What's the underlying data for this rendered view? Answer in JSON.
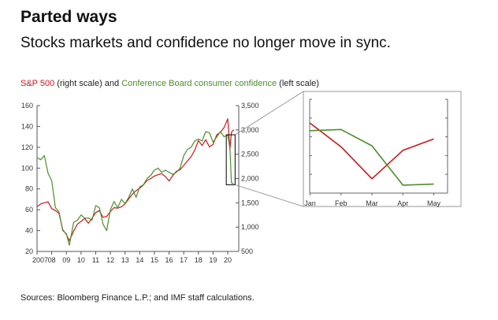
{
  "header": {
    "title": "Parted ways",
    "subtitle": "Stocks markets and confidence no longer move in sync."
  },
  "legend": {
    "sp500": "S&P 500",
    "right_scale": " (right scale) and ",
    "confidence": "Conference Board consumer confidence",
    "left_scale": " (left scale)"
  },
  "source": "Sources: Bloomberg Finance L.P.; and IMF staff calculations.",
  "colors": {
    "sp500": "#d0161c",
    "confidence": "#4c8f2a",
    "axis": "#555555"
  },
  "chart_data": [
    {
      "type": "line",
      "x_tick_labels": [
        "2007",
        "08",
        "09",
        "10",
        "11",
        "12",
        "13",
        "14",
        "15",
        "16",
        "17",
        "18",
        "19",
        "20"
      ],
      "y_left": {
        "range": [
          20,
          160
        ],
        "ticks": [
          "20",
          "40",
          "60",
          "80",
          "100",
          "120",
          "140",
          "160"
        ]
      },
      "y_right": {
        "range": [
          500,
          3500
        ],
        "ticks": [
          "500",
          "1,000",
          "1,500",
          "2,000",
          "2,500",
          "3,000",
          "3,500"
        ]
      },
      "series": [
        {
          "name": "S&P 500",
          "axis": "right",
          "x": [
            2007.0,
            2007.25,
            2007.5,
            2007.75,
            2008.0,
            2008.25,
            2008.5,
            2008.75,
            2009.0,
            2009.2,
            2009.5,
            2009.75,
            2010.0,
            2010.25,
            2010.5,
            2010.75,
            2011.0,
            2011.25,
            2011.5,
            2011.75,
            2012.0,
            2012.25,
            2012.5,
            2012.75,
            2013.0,
            2013.25,
            2013.5,
            2013.75,
            2014.0,
            2014.25,
            2014.5,
            2014.75,
            2015.0,
            2015.25,
            2015.5,
            2015.75,
            2016.0,
            2016.25,
            2016.5,
            2016.75,
            2017.0,
            2017.25,
            2017.5,
            2017.75,
            2018.0,
            2018.25,
            2018.5,
            2018.75,
            2019.0,
            2019.25,
            2019.5,
            2019.75,
            2020.0,
            2020.15,
            2020.25,
            2020.4
          ],
          "values": [
            1420,
            1480,
            1500,
            1520,
            1380,
            1340,
            1280,
            950,
            850,
            720,
            920,
            1060,
            1120,
            1180,
            1080,
            1180,
            1300,
            1340,
            1200,
            1220,
            1320,
            1400,
            1390,
            1420,
            1480,
            1580,
            1680,
            1750,
            1800,
            1870,
            1960,
            2000,
            2050,
            2080,
            2100,
            2040,
            1950,
            2060,
            2150,
            2180,
            2270,
            2360,
            2450,
            2580,
            2780,
            2680,
            2800,
            2650,
            2700,
            2900,
            2950,
            3050,
            3230,
            2600,
            2950,
            3000
          ]
        },
        {
          "name": "Conference Board consumer confidence",
          "axis": "left",
          "x": [
            2007.0,
            2007.25,
            2007.5,
            2007.75,
            2008.0,
            2008.25,
            2008.5,
            2008.75,
            2009.0,
            2009.2,
            2009.5,
            2009.75,
            2010.0,
            2010.25,
            2010.5,
            2010.75,
            2011.0,
            2011.25,
            2011.5,
            2011.75,
            2012.0,
            2012.25,
            2012.5,
            2012.75,
            2013.0,
            2013.25,
            2013.5,
            2013.75,
            2014.0,
            2014.25,
            2014.5,
            2014.75,
            2015.0,
            2015.25,
            2015.5,
            2015.75,
            2016.0,
            2016.25,
            2016.5,
            2016.75,
            2017.0,
            2017.25,
            2017.5,
            2017.75,
            2018.0,
            2018.25,
            2018.5,
            2018.75,
            2019.0,
            2019.25,
            2019.5,
            2019.75,
            2020.0,
            2020.15,
            2020.25,
            2020.4
          ],
          "values": [
            110,
            108,
            112,
            95,
            88,
            62,
            58,
            40,
            37,
            26,
            48,
            50,
            55,
            52,
            52,
            50,
            64,
            62,
            46,
            40,
            60,
            68,
            62,
            70,
            66,
            72,
            80,
            72,
            82,
            84,
            90,
            93,
            98,
            100,
            96,
            98,
            96,
            94,
            96,
            100,
            112,
            118,
            120,
            126,
            128,
            126,
            135,
            134,
            125,
            130,
            135,
            130,
            132,
            119,
            86,
            85
          ]
        }
      ]
    },
    {
      "type": "line",
      "x_tick_labels": [
        "Jan",
        "Feb",
        "Mar",
        "Apr",
        "May"
      ],
      "series": [
        {
          "name": "S&P 500",
          "values": [
            3225,
            2954,
            2585,
            2912,
            3044
          ]
        },
        {
          "name": "Conference Board consumer confidence",
          "values": [
            131.6,
            132.6,
            118.8,
            85.7,
            86.6
          ]
        }
      ]
    }
  ]
}
